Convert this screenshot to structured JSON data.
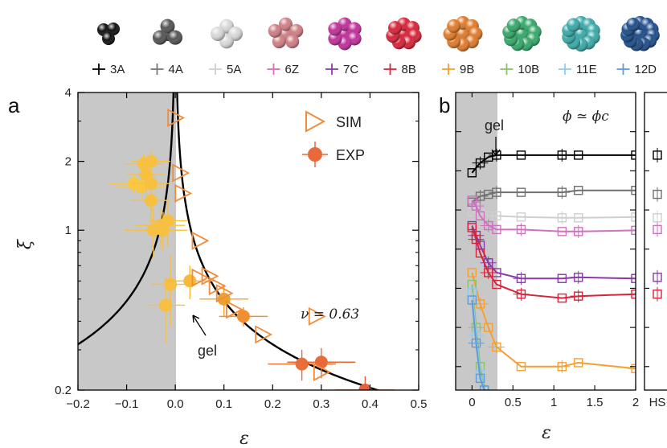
{
  "clusters": {
    "items": [
      {
        "label": "3A",
        "color": "#111111",
        "n": 3
      },
      {
        "label": "4A",
        "color": "#555555",
        "n": 4
      },
      {
        "label": "5A",
        "color": "#d8d8d8",
        "n": 5
      },
      {
        "label": "6Z",
        "color": "#cf7f86",
        "n": 6
      },
      {
        "label": "7C",
        "color": "#c0309a",
        "n": 7
      },
      {
        "label": "8B",
        "color": "#d8243a",
        "n": 8
      },
      {
        "label": "9B",
        "color": "#e07a2a",
        "n": 9
      },
      {
        "label": "10B",
        "color": "#35a86a",
        "n": 10
      },
      {
        "label": "11E",
        "color": "#3aaaa8",
        "n": 11
      },
      {
        "label": "12D",
        "color": "#1f4e8a",
        "n": 12
      }
    ],
    "legend_colors": [
      "#000000",
      "#777777",
      "#d0d0d0",
      "#d070c0",
      "#8a3aa8",
      "#d8243a",
      "#f5a030",
      "#8ac070",
      "#90ccf0",
      "#5f9bd6"
    ]
  },
  "chart_data": [
    {
      "panel_label": "a",
      "type": "scatter",
      "xlabel": "ε",
      "ylabel": "ξ",
      "xlim": [
        -0.2,
        0.5
      ],
      "ylim": [
        0.2,
        4
      ],
      "yscale": "log",
      "x_ticks": [
        "−0.2",
        "−0.1",
        "0.0",
        "0.1",
        "0.2",
        "0.3",
        "0.4",
        "0.5"
      ],
      "y_ticks": [
        "0.2",
        "1",
        "2",
        "4"
      ],
      "shaded_region": [
        -0.2,
        0.0
      ],
      "legend": {
        "position": "top-right",
        "entries": [
          "SIM",
          "EXP"
        ]
      },
      "annotations": {
        "gel": "gel",
        "nu": "ν = 0.63"
      },
      "series": [
        {
          "name": "SIM",
          "marker": "triangle-right",
          "color": "#f08c3a",
          "points": [
            [
              0.0,
              3.1
            ],
            [
              0.01,
              1.78
            ],
            [
              0.015,
              1.45
            ],
            [
              0.05,
              0.9
            ],
            [
              0.05,
              0.62
            ],
            [
              0.07,
              0.63
            ],
            [
              0.085,
              0.57
            ],
            [
              0.1,
              0.53
            ],
            [
              0.12,
              0.45
            ],
            [
              0.18,
              0.35
            ],
            [
              0.29,
              0.42
            ],
            [
              0.3,
              0.24
            ]
          ]
        },
        {
          "name": "EXP",
          "marker": "circle",
          "color": "#e86a3a",
          "points": [
            {
              "x": -0.085,
              "y": 1.6,
              "c": "#f8c840",
              "xe": 0.05,
              "ye": 0.15
            },
            {
              "x": -0.07,
              "y": 1.55,
              "c": "#f8c840",
              "xe": 0.05,
              "ye": 0.2
            },
            {
              "x": -0.065,
              "y": 1.95,
              "c": "#f8c040",
              "xe": 0.04,
              "ye": 0.2
            },
            {
              "x": -0.05,
              "y": 2.0,
              "c": "#f8c040",
              "xe": 0.04,
              "ye": 0.25
            },
            {
              "x": -0.06,
              "y": 1.75,
              "c": "#f8c040",
              "xe": 0.04,
              "ye": 0.3
            },
            {
              "x": -0.05,
              "y": 1.6,
              "c": "#f8c040",
              "xe": 0.04,
              "ye": 0.4
            },
            {
              "x": -0.05,
              "y": 1.35,
              "c": "#f8c040",
              "xe": 0.04,
              "ye": 0.3
            },
            {
              "x": -0.03,
              "y": 1.05,
              "c": "#f8c040",
              "xe": 0.05,
              "ye": 0.2
            },
            {
              "x": -0.045,
              "y": 1.0,
              "c": "#f8c040",
              "xe": 0.06,
              "ye": 0.25
            },
            {
              "x": -0.015,
              "y": 1.1,
              "c": "#f8c040",
              "xe": 0.04,
              "ye": 0.25
            },
            {
              "x": -0.01,
              "y": 0.58,
              "c": "#f8c040",
              "xe": 0.04,
              "ye": 0.2
            },
            {
              "x": -0.025,
              "y": 1.0,
              "c": "#f8c040",
              "xe": 0.05,
              "ye": 0.2
            },
            {
              "x": -0.02,
              "y": 0.47,
              "c": "#f8c040",
              "xe": 0.04,
              "ye": 0.15
            },
            {
              "x": 0.03,
              "y": 0.6,
              "c": "#f8b838",
              "xe": 0.05,
              "ye": 0.1
            },
            {
              "x": 0.1,
              "y": 0.5,
              "c": "#f0a030",
              "xe": 0.05,
              "ye": 0.08
            },
            {
              "x": 0.14,
              "y": 0.42,
              "c": "#f09030",
              "xe": 0.05,
              "ye": 0.04
            },
            {
              "x": 0.26,
              "y": 0.26,
              "c": "#e87038",
              "xe": 0.07,
              "ye": 0.04
            },
            {
              "x": 0.3,
              "y": 0.265,
              "c": "#e86a38",
              "xe": 0.07,
              "ye": 0.04
            },
            {
              "x": 0.39,
              "y": 0.2,
              "c": "#e8603a",
              "xe": 0.06,
              "ye": 0.03
            }
          ]
        },
        {
          "name": "fit",
          "type": "line",
          "color": "#000000",
          "nu": 0.63,
          "amplitude": 0.115
        }
      ]
    },
    {
      "panel_label": "b",
      "type": "line",
      "xlabel": "ε",
      "xlim": [
        -0.2,
        2
      ],
      "x_ticks": [
        "0",
        "0.5",
        "1",
        "1.5",
        "2"
      ],
      "extra_column_label": "HS",
      "shaded_region": [
        -0.2,
        0.0
      ],
      "annotations": {
        "gel": "gel",
        "phi": "ϕ ≃ ϕc"
      },
      "series": [
        {
          "name": "3A",
          "color": "#000000",
          "x": [
            0,
            0.1,
            0.2,
            0.3,
            0.6,
            1.1,
            1.3,
            2
          ],
          "y": [
            1.95,
            2.2,
            2.35,
            2.4,
            2.4,
            2.4,
            2.4,
            2.4
          ],
          "hs": 2.4
        },
        {
          "name": "4A",
          "color": "#707070",
          "x": [
            0,
            0.1,
            0.2,
            0.3,
            0.6,
            1.1,
            1.3,
            2
          ],
          "y": [
            1.2,
            1.35,
            1.4,
            1.45,
            1.45,
            1.45,
            1.5,
            1.5
          ],
          "hs": 1.4
        },
        {
          "name": "5A",
          "color": "#cfcfcf",
          "x": [
            0,
            0.1,
            0.2,
            0.3,
            0.6,
            1.1,
            1.3,
            2
          ],
          "y": [
            0.95,
            0.9,
            0.85,
            0.85,
            0.82,
            0.8,
            0.8,
            0.82
          ],
          "hs": 0.8
        },
        {
          "name": "6Z",
          "color": "#d070c0",
          "x": [
            0,
            0.05,
            0.1,
            0.2,
            0.3,
            0.6,
            1.1,
            1.3,
            2
          ],
          "y": [
            1.25,
            1.1,
            0.85,
            0.6,
            0.5,
            0.5,
            0.45,
            0.45,
            0.48
          ],
          "hs": 0.5
        },
        {
          "name": "7C",
          "color": "#8a3aa8",
          "x": [
            0,
            0.05,
            0.1,
            0.2,
            0.3,
            0.6,
            1.1,
            1.3,
            2
          ],
          "y": [
            0.6,
            0.35,
            0.1,
            -0.35,
            -0.6,
            -0.75,
            -0.75,
            -0.72,
            -0.75
          ],
          "hs": -0.72
        },
        {
          "name": "8B",
          "color": "#d8243a",
          "x": [
            0,
            0.05,
            0.1,
            0.2,
            0.3,
            0.6,
            1.1,
            1.3,
            2
          ],
          "y": [
            0.55,
            0.25,
            -0.1,
            -0.6,
            -0.9,
            -1.15,
            -1.25,
            -1.2,
            -1.15
          ],
          "hs": -1.15
        },
        {
          "name": "9B",
          "color": "#f5a030",
          "x": [
            0,
            0.1,
            0.2,
            0.3,
            0.6,
            1.1,
            1.3,
            2
          ],
          "y": [
            -0.6,
            -1.4,
            -2.0,
            -2.5,
            -3.0,
            -3.0,
            -2.9,
            -3.05
          ],
          "hs": null
        },
        {
          "name": "10B",
          "color": "#8ac070",
          "x": [
            0,
            0.05,
            0.1,
            0.15
          ],
          "y": [
            -0.9,
            -2.0,
            -3.0,
            -3.6
          ],
          "hs": null
        },
        {
          "name": "11E",
          "color": "#90ccf0",
          "x": [
            0,
            0.05,
            0.1,
            0.15
          ],
          "y": [
            -1.1,
            -2.2,
            -3.2,
            -3.6
          ],
          "hs": null
        },
        {
          "name": "12D",
          "color": "#5f9bd6",
          "x": [
            0,
            0.05,
            0.1,
            0.15
          ],
          "y": [
            -1.3,
            -2.4,
            -3.3,
            -3.6
          ],
          "hs": null
        }
      ]
    }
  ]
}
